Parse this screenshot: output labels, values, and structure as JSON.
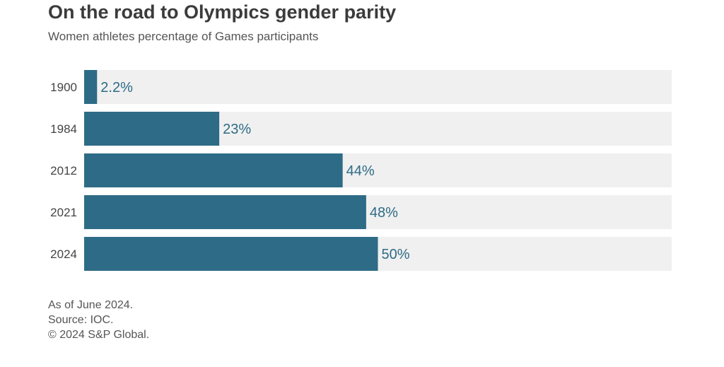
{
  "chart_data": {
    "type": "bar",
    "orientation": "horizontal",
    "title": "On the road to Olympics gender parity",
    "subtitle": "Women athletes percentage of Games participants",
    "categories": [
      "1900",
      "1984",
      "2012",
      "2021",
      "2024"
    ],
    "values": [
      2.2,
      23,
      44,
      48,
      50
    ],
    "data_labels": [
      "2.2%",
      "23%",
      "44%",
      "48%",
      "50%"
    ],
    "xlim": [
      0,
      100
    ],
    "unit": "%",
    "grid": false,
    "colors": {
      "bar": "#2e6b86",
      "track": "#f0f0f0",
      "label": "#2e6b86"
    }
  },
  "footer": {
    "note": "As of June 2024.",
    "source": "Source: IOC.",
    "copyright": "© 2024 S&P Global."
  }
}
